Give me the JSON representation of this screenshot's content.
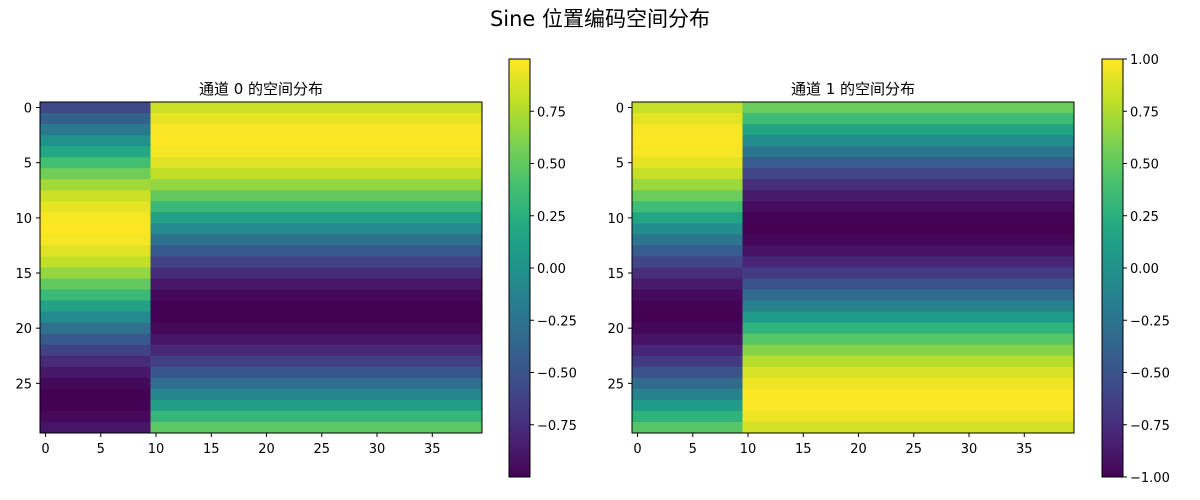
{
  "figure": {
    "title": "Sine 位置编码空间分布"
  },
  "chart_data": [
    {
      "type": "heatmap",
      "title": "通道 0 的空间分布",
      "colormap": "viridis",
      "rows": 30,
      "cols": 40,
      "grid": false,
      "region_split_col": 10,
      "left_region_formula": "sin(0.2 * (row - 3))",
      "right_region_formula": "sin(0.2 * (row + 5))",
      "xlim": [
        0,
        39
      ],
      "ylim": [
        0,
        29
      ],
      "xticks": [
        0,
        5,
        10,
        15,
        20,
        25,
        30,
        35
      ],
      "yticks": [
        0,
        5,
        10,
        15,
        20,
        25
      ],
      "colorbar": {
        "range": [
          -1.0,
          1.0
        ],
        "ticks": [
          "0.75",
          "0.50",
          "0.25",
          "0.00",
          "−0.25",
          "−0.50",
          "−0.75"
        ],
        "tick_values": [
          0.75,
          0.5,
          0.25,
          0.0,
          -0.25,
          -0.5,
          -0.75
        ]
      }
    },
    {
      "type": "heatmap",
      "title": "通道 1 的空间分布",
      "colormap": "viridis",
      "rows": 30,
      "cols": 40,
      "grid": false,
      "region_split_col": 10,
      "left_region_formula": "cos(0.2 * (row - 3))",
      "right_region_formula": "cos(0.2 * (row + 5))",
      "xlim": [
        0,
        39
      ],
      "ylim": [
        0,
        29
      ],
      "xticks": [
        0,
        5,
        10,
        15,
        20,
        25,
        30,
        35
      ],
      "yticks": [
        0,
        5,
        10,
        15,
        20,
        25
      ],
      "colorbar": {
        "range": [
          -1.0,
          1.0
        ],
        "ticks": [
          "1.00",
          "0.75",
          "0.50",
          "0.25",
          "0.00",
          "−0.25",
          "−0.50",
          "−0.75",
          "−1.00"
        ],
        "tick_values": [
          1.0,
          0.75,
          0.5,
          0.25,
          0.0,
          -0.25,
          -0.5,
          -0.75,
          -1.0
        ]
      }
    }
  ]
}
